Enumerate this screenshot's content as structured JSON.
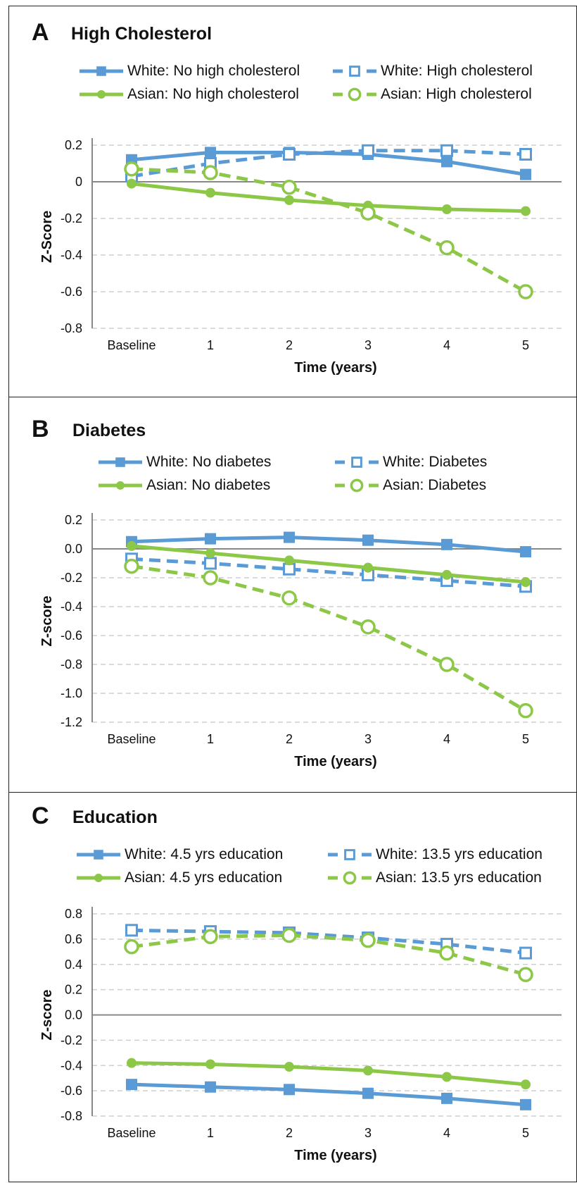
{
  "colors": {
    "white": "#5b9bd5",
    "asian": "#8cc747",
    "grid": "#cfcfcf",
    "axis": "#888888"
  },
  "panels": [
    {
      "letter": "A",
      "title": "High Cholesterol",
      "legend": [
        {
          "label": "White: No high cholesterol",
          "series": 0
        },
        {
          "label": "White: High cholesterol",
          "series": 1
        },
        {
          "label": "Asian: No high cholesterol",
          "series": 2
        },
        {
          "label": "Asian: High cholesterol",
          "series": 3
        }
      ]
    },
    {
      "letter": "B",
      "title": "Diabetes",
      "legend": [
        {
          "label": "White: No diabetes",
          "series": 0
        },
        {
          "label": "White: Diabetes",
          "series": 1
        },
        {
          "label": "Asian: No diabetes",
          "series": 2
        },
        {
          "label": "Asian: Diabetes",
          "series": 3
        }
      ]
    },
    {
      "letter": "C",
      "title": "Education",
      "legend": [
        {
          "label": "White: 4.5 yrs education",
          "series": 0
        },
        {
          "label": "White: 13.5 yrs education",
          "series": 1
        },
        {
          "label": "Asian: 4.5 yrs education",
          "series": 2
        },
        {
          "label": "Asian: 13.5 yrs education",
          "series": 3
        }
      ]
    }
  ],
  "chart_data": [
    {
      "type": "line",
      "title": "High Cholesterol",
      "xlabel": "Time (years)",
      "ylabel": "Z-Score",
      "categories": [
        "Baseline",
        "1",
        "2",
        "3",
        "4",
        "5"
      ],
      "ylim": [
        -0.8,
        0.2
      ],
      "yticks": [
        "0.2",
        "0",
        "-0.2",
        "-0.4",
        "-0.6",
        "-0.8"
      ],
      "ytick_values": [
        0.2,
        0,
        -0.2,
        -0.4,
        -0.6,
        -0.8
      ],
      "grid": true,
      "series": [
        {
          "name": "White: No high cholesterol",
          "color": "white",
          "style": "solid",
          "marker": "square-filled",
          "values": [
            0.12,
            0.16,
            0.16,
            0.15,
            0.11,
            0.04
          ]
        },
        {
          "name": "White: High cholesterol",
          "color": "white",
          "style": "dashed",
          "marker": "square-open",
          "values": [
            0.03,
            0.1,
            0.15,
            0.17,
            0.17,
            0.15
          ]
        },
        {
          "name": "Asian: No high cholesterol",
          "color": "asian",
          "style": "solid",
          "marker": "circle-filled",
          "values": [
            -0.01,
            -0.06,
            -0.1,
            -0.13,
            -0.15,
            -0.16
          ]
        },
        {
          "name": "Asian: High cholesterol",
          "color": "asian",
          "style": "dashed",
          "marker": "circle-open",
          "values": [
            0.07,
            0.05,
            -0.03,
            -0.17,
            -0.36,
            -0.6
          ]
        }
      ]
    },
    {
      "type": "line",
      "title": "Diabetes",
      "xlabel": "Time (years)",
      "ylabel": "Z-score",
      "categories": [
        "Baseline",
        "1",
        "2",
        "3",
        "4",
        "5"
      ],
      "ylim": [
        -1.2,
        0.2
      ],
      "yticks": [
        "0.2",
        "0.0",
        "-0.2",
        "-0.4",
        "-0.6",
        "-0.8",
        "-1.0",
        "-1.2"
      ],
      "ytick_values": [
        0.2,
        0.0,
        -0.2,
        -0.4,
        -0.6,
        -0.8,
        -1.0,
        -1.2
      ],
      "grid": true,
      "series": [
        {
          "name": "White: No diabetes",
          "color": "white",
          "style": "solid",
          "marker": "square-filled",
          "values": [
            0.05,
            0.07,
            0.08,
            0.06,
            0.03,
            -0.02
          ]
        },
        {
          "name": "White: Diabetes",
          "color": "white",
          "style": "dashed",
          "marker": "square-open",
          "values": [
            -0.07,
            -0.1,
            -0.14,
            -0.18,
            -0.22,
            -0.26
          ]
        },
        {
          "name": "Asian: No diabetes",
          "color": "asian",
          "style": "solid",
          "marker": "circle-filled",
          "values": [
            0.02,
            -0.03,
            -0.08,
            -0.13,
            -0.18,
            -0.23
          ]
        },
        {
          "name": "Asian: Diabetes",
          "color": "asian",
          "style": "dashed",
          "marker": "circle-open",
          "values": [
            -0.12,
            -0.2,
            -0.34,
            -0.54,
            -0.8,
            -1.12
          ]
        }
      ]
    },
    {
      "type": "line",
      "title": "Education",
      "xlabel": "Time (years)",
      "ylabel": "Z-score",
      "categories": [
        "Baseline",
        "1",
        "2",
        "3",
        "4",
        "5"
      ],
      "ylim": [
        -0.8,
        0.8
      ],
      "yticks": [
        "0.8",
        "0.6",
        "0.4",
        "0.2",
        "0.0",
        "-0.2",
        "-0.4",
        "-0.6",
        "-0.8"
      ],
      "ytick_values": [
        0.8,
        0.6,
        0.4,
        0.2,
        0.0,
        -0.2,
        -0.4,
        -0.6,
        -0.8
      ],
      "grid": true,
      "series": [
        {
          "name": "White: 4.5 yrs education",
          "color": "white",
          "style": "solid",
          "marker": "square-filled",
          "values": [
            -0.55,
            -0.57,
            -0.59,
            -0.62,
            -0.66,
            -0.71
          ]
        },
        {
          "name": "White: 13.5 yrs education",
          "color": "white",
          "style": "dashed",
          "marker": "square-open",
          "values": [
            0.67,
            0.66,
            0.65,
            0.61,
            0.56,
            0.49
          ]
        },
        {
          "name": "Asian: 4.5 yrs education",
          "color": "asian",
          "style": "solid",
          "marker": "circle-filled",
          "values": [
            -0.38,
            -0.39,
            -0.41,
            -0.44,
            -0.49,
            -0.55
          ]
        },
        {
          "name": "Asian: 13.5 yrs education",
          "color": "asian",
          "style": "dashed",
          "marker": "circle-open",
          "values": [
            0.54,
            0.62,
            0.63,
            0.59,
            0.49,
            0.32
          ]
        }
      ]
    }
  ]
}
